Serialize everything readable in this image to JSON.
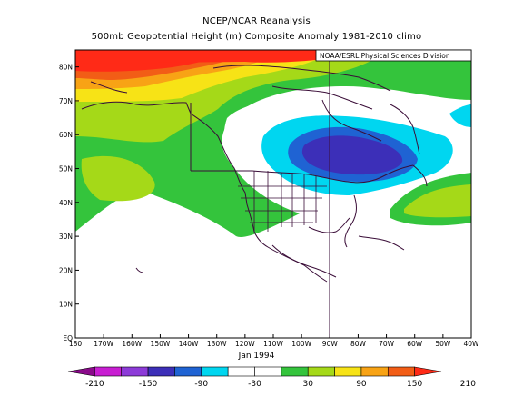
{
  "title": "NCEP/NCAR Reanalysis",
  "subtitle": "500mb Geopotential Height (m) Composite Anomaly 1981-2010 climo",
  "credit": "NOAA/ESRL Physical Sciences Division",
  "date_label": "Jan 1994",
  "map": {
    "lon_range": [
      -180,
      -40
    ],
    "lat_range": [
      0,
      85
    ],
    "lon_ticks": [
      "180",
      "170W",
      "160W",
      "150W",
      "140W",
      "130W",
      "120W",
      "110W",
      "100W",
      "90W",
      "80W",
      "70W",
      "60W",
      "50W",
      "40W"
    ],
    "lat_ticks": [
      "EQ",
      "10N",
      "20N",
      "30N",
      "40N",
      "50N",
      "60N",
      "70N",
      "80N"
    ],
    "anomaly_features": [
      {
        "type": "positive-max",
        "lon": -160,
        "lat": 82,
        "value_approx": 200
      },
      {
        "type": "negative-min",
        "lon": -85,
        "lat": 53,
        "value_approx": -120
      },
      {
        "type": "positive",
        "lon": -48,
        "lat": 42,
        "value_approx": 40
      },
      {
        "type": "positive",
        "lon": -125,
        "lat": 42,
        "value_approx": 40
      }
    ]
  },
  "colorbar": {
    "tick_labels": [
      "-210",
      "-150",
      "-90",
      "-30",
      "30",
      "90",
      "150",
      "210"
    ],
    "colors": [
      "#8b0a8b",
      "#c81ed2",
      "#8d3bd8",
      "#3c2fb8",
      "#1f63d3",
      "#00d6f0",
      "#ffffff",
      "#ffffff",
      "#34c43c",
      "#a5d918",
      "#f7e316",
      "#f8a315",
      "#f25d16",
      "#ff2a17"
    ]
  }
}
